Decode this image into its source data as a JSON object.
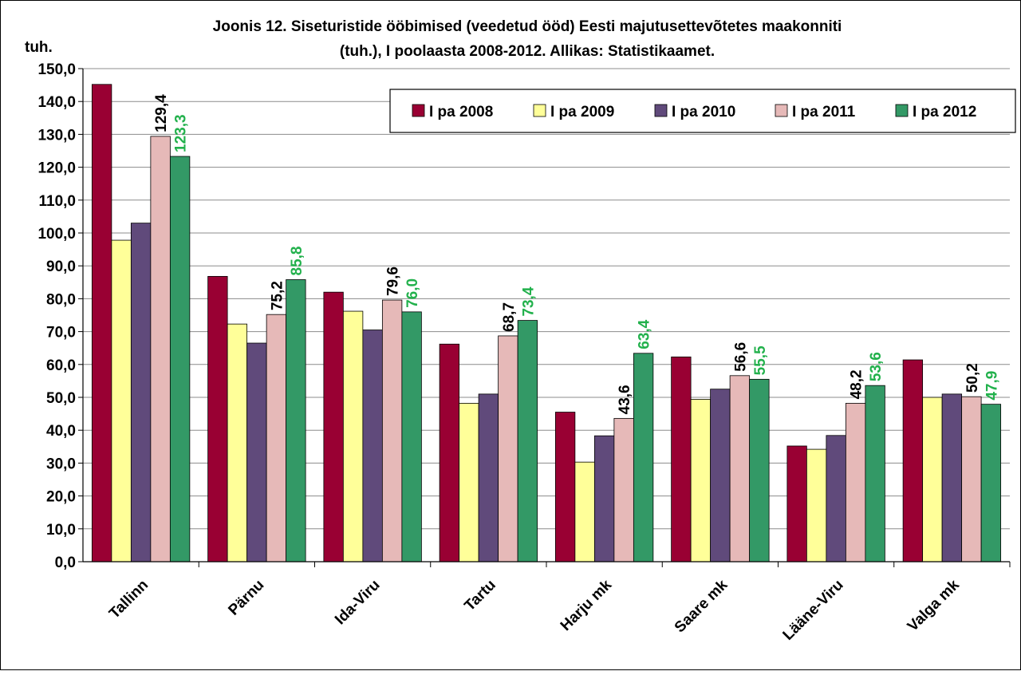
{
  "chart_data": {
    "type": "bar",
    "title_line1": "Joonis 12. Siseturistide ööbimised (veedetud ööd) Eesti majutusettevõtetes maakonniti",
    "title_line2": "(tuh.), I poolaasta 2008-2012. Allikas: Statistikaamet.",
    "ylabel": "tuh.",
    "ylim": [
      0,
      150
    ],
    "ytick_step": 10,
    "ytick_labels": [
      "0,0",
      "10,0",
      "20,0",
      "30,0",
      "40,0",
      "50,0",
      "60,0",
      "70,0",
      "80,0",
      "90,0",
      "100,0",
      "110,0",
      "120,0",
      "130,0",
      "140,0",
      "150,0"
    ],
    "grid": true,
    "legend_position": "top-right",
    "categories": [
      "Tallinn",
      "Pärnu",
      "Ida-Viru",
      "Tartu",
      "Harju mk",
      "Saare mk",
      "Lääne-Viru",
      "Valga mk"
    ],
    "series": [
      {
        "name": "I pa 2008",
        "color": "#990033",
        "values": [
          145.2,
          86.8,
          82.0,
          66.2,
          45.5,
          62.3,
          35.2,
          61.4
        ],
        "labels": null,
        "label_color": null
      },
      {
        "name": "I pa 2009",
        "color": "#FFFF99",
        "values": [
          97.8,
          72.3,
          76.2,
          48.2,
          30.3,
          49.4,
          34.2,
          50.0
        ],
        "labels": null,
        "label_color": null
      },
      {
        "name": "I pa 2010",
        "color": "#604A7B",
        "values": [
          103.0,
          66.5,
          70.5,
          51.0,
          38.3,
          52.5,
          38.4,
          51.0
        ],
        "labels": null,
        "label_color": null
      },
      {
        "name": "I pa 2011",
        "color": "#E6B9B8",
        "values": [
          129.4,
          75.2,
          79.6,
          68.7,
          43.6,
          56.6,
          48.2,
          50.2
        ],
        "labels": [
          "129,4",
          "75,2",
          "79,6",
          "68,7",
          "43,6",
          "56,6",
          "48,2",
          "50,2"
        ],
        "label_color": "#000000"
      },
      {
        "name": "I pa 2012",
        "color": "#339966",
        "values": [
          123.3,
          85.8,
          76.0,
          73.4,
          63.4,
          55.5,
          53.6,
          47.9
        ],
        "labels": [
          "123,3",
          "85,8",
          "76,0",
          "73,4",
          "63,4",
          "55,5",
          "53,6",
          "47,9"
        ],
        "label_color": "#22B14C"
      }
    ]
  }
}
